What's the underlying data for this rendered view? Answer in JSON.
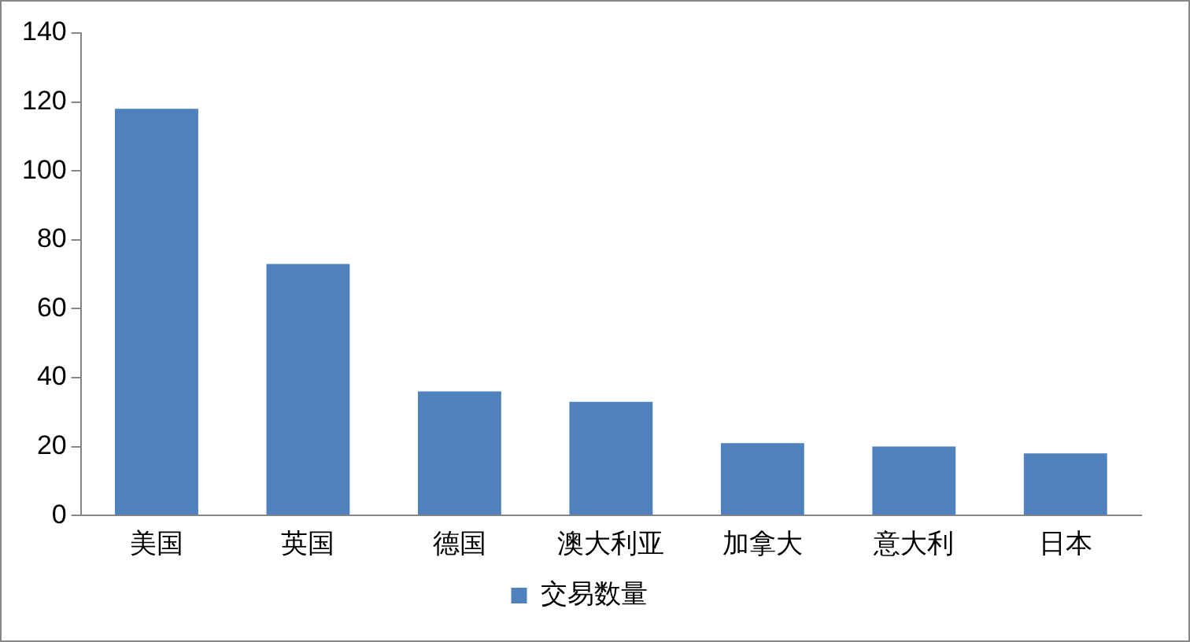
{
  "chart_data": {
    "type": "bar",
    "categories": [
      "美国",
      "英国",
      "德国",
      "澳大利亚",
      "加拿大",
      "意大利",
      "日本"
    ],
    "series": [
      {
        "name": "交易数量",
        "color": "#4f81bd",
        "values": [
          118,
          73,
          36,
          33,
          21,
          20,
          18
        ]
      }
    ],
    "ylim": [
      0,
      140
    ],
    "yticks": [
      0,
      20,
      40,
      60,
      80,
      100,
      120,
      140
    ],
    "grid": false,
    "legend": "bottom"
  }
}
